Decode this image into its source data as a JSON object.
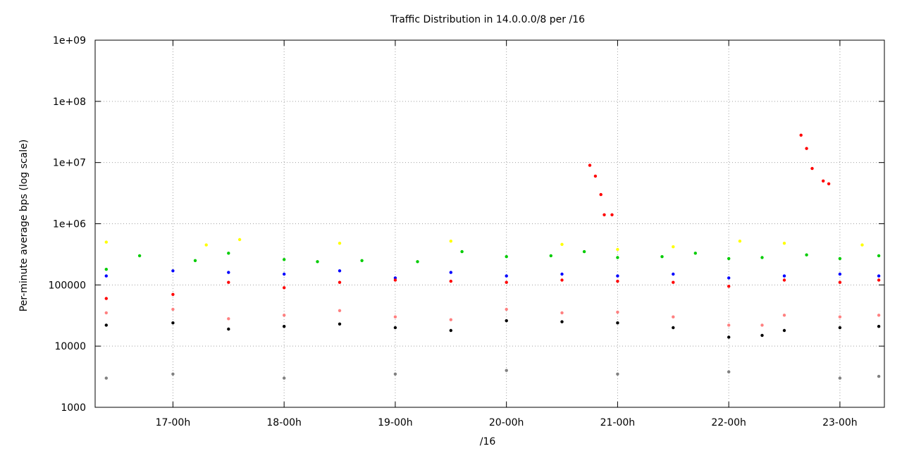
{
  "chart_data": {
    "type": "scatter",
    "title": "Traffic Distribution in 14.0.0.0/8 per /16",
    "xlabel": "/16",
    "ylabel": "Per-minute average bps (log scale)",
    "yscale": "log",
    "ylim": [
      1000,
      1000000000
    ],
    "xlim_hours": [
      16.3,
      23.4
    ],
    "y_ticks": [
      {
        "value": 1000,
        "label": "1000"
      },
      {
        "value": 10000,
        "label": "10000"
      },
      {
        "value": 100000,
        "label": "100000"
      },
      {
        "value": 1000000,
        "label": "1e+06"
      },
      {
        "value": 10000000,
        "label": "1e+07"
      },
      {
        "value": 100000000,
        "label": "1e+08"
      },
      {
        "value": 1000000000,
        "label": "1e+09"
      }
    ],
    "x_ticks": [
      {
        "value": 17,
        "label": "17-00h"
      },
      {
        "value": 18,
        "label": "18-00h"
      },
      {
        "value": 19,
        "label": "19-00h"
      },
      {
        "value": 20,
        "label": "20-00h"
      },
      {
        "value": 21,
        "label": "21-00h"
      },
      {
        "value": 22,
        "label": "22-00h"
      },
      {
        "value": 23,
        "label": "23-00h"
      }
    ],
    "grid": true,
    "legend": "none",
    "series": [
      {
        "color": "#00cc00",
        "band": "green",
        "points": [
          [
            16.4,
            180000
          ],
          [
            16.7,
            300000
          ],
          [
            17.2,
            250000
          ],
          [
            17.5,
            330000
          ],
          [
            18.0,
            260000
          ],
          [
            18.3,
            240000
          ],
          [
            18.7,
            250000
          ],
          [
            19.2,
            240000
          ],
          [
            19.6,
            350000
          ],
          [
            20.0,
            290000
          ],
          [
            20.4,
            300000
          ],
          [
            20.7,
            350000
          ],
          [
            21.0,
            280000
          ],
          [
            21.4,
            290000
          ],
          [
            21.7,
            330000
          ],
          [
            22.0,
            270000
          ],
          [
            22.3,
            280000
          ],
          [
            22.7,
            310000
          ],
          [
            23.0,
            270000
          ],
          [
            23.35,
            300000
          ]
        ]
      },
      {
        "color": "#ffff00",
        "band": "yellow",
        "points": [
          [
            16.4,
            500000
          ],
          [
            17.3,
            450000
          ],
          [
            17.6,
            550000
          ],
          [
            18.5,
            480000
          ],
          [
            19.5,
            520000
          ],
          [
            20.5,
            460000
          ],
          [
            21.0,
            380000
          ],
          [
            21.5,
            420000
          ],
          [
            22.1,
            520000
          ],
          [
            22.5,
            480000
          ],
          [
            23.2,
            450000
          ]
        ]
      },
      {
        "color": "#0000ff",
        "band": "blue",
        "points": [
          [
            16.4,
            140000
          ],
          [
            17.0,
            170000
          ],
          [
            17.5,
            160000
          ],
          [
            18.0,
            150000
          ],
          [
            18.5,
            170000
          ],
          [
            19.0,
            130000
          ],
          [
            19.5,
            160000
          ],
          [
            20.0,
            140000
          ],
          [
            20.5,
            150000
          ],
          [
            21.0,
            140000
          ],
          [
            21.5,
            150000
          ],
          [
            22.0,
            130000
          ],
          [
            22.5,
            140000
          ],
          [
            23.0,
            150000
          ],
          [
            23.35,
            140000
          ]
        ]
      },
      {
        "color": "#ff0000",
        "band": "red",
        "points": [
          [
            16.4,
            60000
          ],
          [
            17.0,
            70000
          ],
          [
            17.5,
            110000
          ],
          [
            18.0,
            90000
          ],
          [
            18.5,
            110000
          ],
          [
            19.0,
            120000
          ],
          [
            19.5,
            115000
          ],
          [
            20.0,
            110000
          ],
          [
            20.5,
            120000
          ],
          [
            21.0,
            115000
          ],
          [
            21.5,
            110000
          ],
          [
            22.0,
            95000
          ],
          [
            22.5,
            120000
          ],
          [
            23.0,
            110000
          ],
          [
            23.35,
            120000
          ]
        ]
      },
      {
        "color": "#ff0000",
        "band": "spike-1",
        "points": [
          [
            20.75,
            9000000
          ],
          [
            20.8,
            6000000
          ],
          [
            20.85,
            3000000
          ],
          [
            20.88,
            1400000
          ],
          [
            20.95,
            1400000
          ]
        ]
      },
      {
        "color": "#ff0000",
        "band": "spike-2",
        "points": [
          [
            22.65,
            28000000
          ],
          [
            22.7,
            17000000
          ],
          [
            22.75,
            8000000
          ],
          [
            22.85,
            5000000
          ],
          [
            22.9,
            4500000
          ]
        ]
      },
      {
        "color": "#ff8080",
        "band": "pink",
        "points": [
          [
            16.4,
            35000
          ],
          [
            17.0,
            40000
          ],
          [
            17.5,
            28000
          ],
          [
            18.0,
            32000
          ],
          [
            18.5,
            38000
          ],
          [
            19.0,
            30000
          ],
          [
            19.5,
            27000
          ],
          [
            20.0,
            40000
          ],
          [
            20.5,
            35000
          ],
          [
            21.0,
            36000
          ],
          [
            21.5,
            30000
          ],
          [
            22.0,
            22000
          ],
          [
            22.3,
            22000
          ],
          [
            22.5,
            32000
          ],
          [
            23.0,
            30000
          ],
          [
            23.35,
            32000
          ]
        ]
      },
      {
        "color": "#000000",
        "band": "floor",
        "points": [
          [
            16.4,
            22000
          ],
          [
            17.0,
            24000
          ],
          [
            17.5,
            19000
          ],
          [
            18.0,
            21000
          ],
          [
            18.5,
            23000
          ],
          [
            19.0,
            20000
          ],
          [
            19.5,
            18000
          ],
          [
            20.0,
            26000
          ],
          [
            20.5,
            25000
          ],
          [
            21.0,
            24000
          ],
          [
            21.5,
            20000
          ],
          [
            22.0,
            14000
          ],
          [
            22.3,
            15000
          ],
          [
            22.5,
            18000
          ],
          [
            23.0,
            20000
          ],
          [
            23.35,
            21000
          ]
        ]
      },
      {
        "color": "#808080",
        "band": "low",
        "points": [
          [
            16.4,
            3000
          ],
          [
            17.0,
            3500
          ],
          [
            18.0,
            3000
          ],
          [
            19.0,
            3500
          ],
          [
            20.0,
            4000
          ],
          [
            21.0,
            3500
          ],
          [
            22.0,
            3800
          ],
          [
            23.0,
            3000
          ],
          [
            23.35,
            3200
          ]
        ]
      }
    ]
  }
}
